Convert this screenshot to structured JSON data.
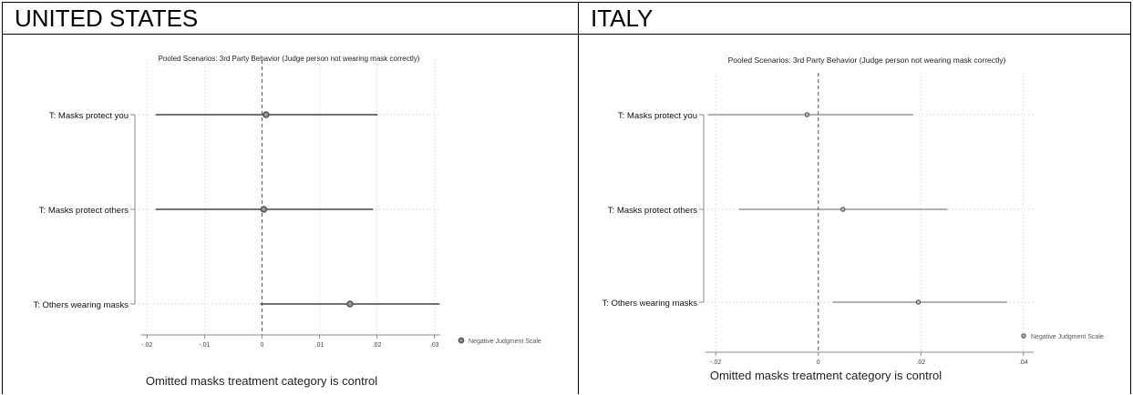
{
  "panels": [
    {
      "header": "UNITED STATES"
    },
    {
      "header": "ITALY"
    }
  ],
  "chart_data": [
    {
      "type": "scatter",
      "title": "Pooled Scenarios: 3rd Party Behavior (Judge person not wearing mask correctly)",
      "xlabel": "",
      "ylabel": "",
      "xlim": [
        -0.021,
        0.031
      ],
      "xticks": [
        -0.02,
        -0.01,
        0,
        0.01,
        0.02,
        0.03
      ],
      "xtick_labels": [
        "-.02",
        "-.01",
        "0",
        ".01",
        ".02",
        ".03"
      ],
      "categories": [
        "T: Masks protect you",
        "T: Masks protect others",
        "T: Others wearing masks"
      ],
      "series": [
        {
          "name": "Negative Judgment Scale",
          "values": [
            0.0007,
            0.0003,
            0.0153
          ],
          "ci_low": [
            -0.0185,
            -0.0185,
            -0.0003
          ],
          "ci_high": [
            0.0201,
            0.0193,
            0.0309
          ]
        }
      ],
      "note": "Omitted masks treatment category is control",
      "grid": true,
      "legend": "bottom-right"
    },
    {
      "type": "scatter",
      "title": "Pooled Scenarios: 3rd Party Behavior (Judge person not wearing mask correctly)",
      "xlabel": "",
      "ylabel": "",
      "xlim": [
        -0.022,
        0.042
      ],
      "xticks": [
        -0.02,
        0,
        0.02,
        0.04
      ],
      "xtick_labels": [
        "-.02",
        "0",
        ".02",
        ".04"
      ],
      "categories": [
        "T: Masks protect you",
        "T: Masks protect others",
        "T: Others wearing masks"
      ],
      "series": [
        {
          "name": "Negative Judgment Scale",
          "values": [
            -0.0022,
            0.0048,
            0.0195
          ],
          "ci_low": [
            -0.0215,
            -0.0155,
            0.0028
          ],
          "ci_high": [
            0.0185,
            0.0252,
            0.0368
          ]
        }
      ],
      "note": "Omitted masks treatment category is control",
      "grid": true,
      "legend": "bottom-right"
    }
  ]
}
